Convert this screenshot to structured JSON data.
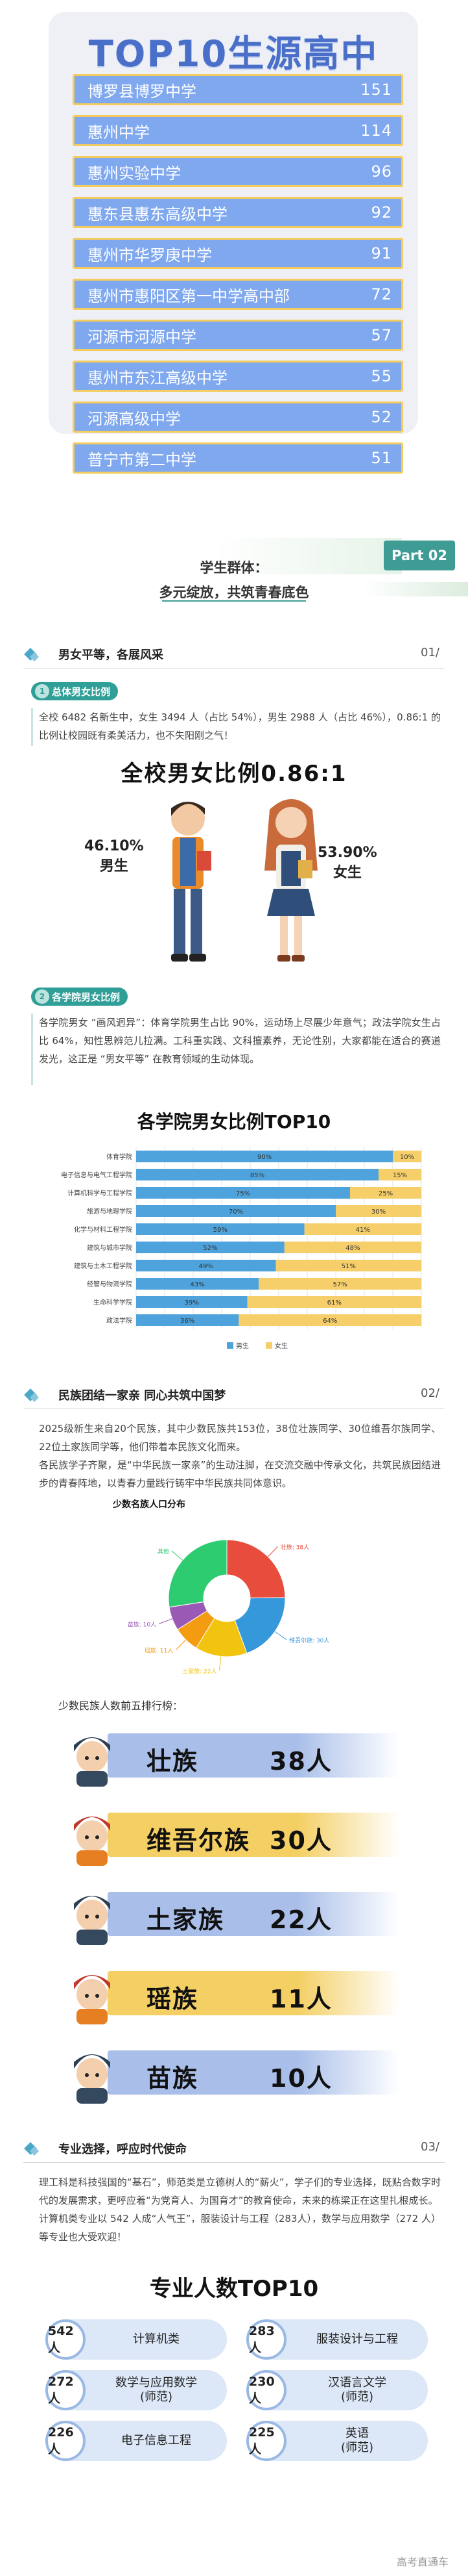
{
  "top10": {
    "title": "TOP10生源高中",
    "schools": [
      {
        "name": "博罗县博罗中学",
        "count": "151"
      },
      {
        "name": "惠州中学",
        "count": "114"
      },
      {
        "name": "惠州实验中学",
        "count": "96"
      },
      {
        "name": "惠东县惠东高级中学",
        "count": "92"
      },
      {
        "name": "惠州市华罗庚中学",
        "count": "91"
      },
      {
        "name": "惠州市惠阳区第一中学高中部",
        "count": "72"
      },
      {
        "name": "河源市河源中学",
        "count": "57"
      },
      {
        "name": "惠州市东江高级中学",
        "count": "55"
      },
      {
        "name": "河源高级中学",
        "count": "52"
      },
      {
        "name": "普宁市第二中学",
        "count": "51"
      }
    ],
    "colors": {
      "bar": "#7fa8ef",
      "border": "#f4cc5c",
      "title": "#4a6fc9"
    }
  },
  "part02": {
    "badge": "Part 02",
    "subtitle1": "学生群体：",
    "subtitle2": "多元绽放，共筑青春底色"
  },
  "sec1": {
    "title": "男女平等，各展风采",
    "num": "01/",
    "tag1": "总体男女比例",
    "para1": "全校 6482 名新生中，女生 3494 人（占比 54%），男生 2988 人（占比 46%），0.86:1 的比例让校园既有柔美活力，也不失阳刚之气！",
    "ratio_title": "全校男女比例0.86:1",
    "male_pct": "46.10%",
    "male_label": "男生",
    "female_pct": "53.90%",
    "female_label": "女生",
    "tag2": "各学院男女比例",
    "para2": "各学院男女 “画风迥异”：体育学院男生占比 90%，运动场上尽展少年意气；政法学院女生占比 64%，知性思辨范儿拉满。工科重实践、文科擅素养，无论性别，大家都能在适合的赛道发光，这正是 “男女平等” 在教育领域的生动体现。"
  },
  "chart_data": [
    {
      "type": "bar",
      "title": "各学院男女比例TOP10",
      "orientation": "horizontal-stacked",
      "categories": [
        "体育学院",
        "电子信息与电气工程学院",
        "计算机科学与工程学院",
        "旅游与地理学院",
        "化学与材料工程学院",
        "建筑与城市学院",
        "建筑与土木工程学院",
        "经管与物流学院",
        "生命科学学院",
        "政法学院"
      ],
      "series": [
        {
          "name": "男生",
          "values": [
            90,
            85,
            75,
            70,
            59,
            52,
            49,
            43,
            39,
            36
          ],
          "color": "#4ea3dc"
        },
        {
          "name": "女生",
          "values": [
            10,
            15,
            25,
            30,
            41,
            48,
            51,
            57,
            61,
            64
          ],
          "color": "#f6cf6b"
        }
      ],
      "value_labels": {
        "男生": [
          "90%",
          "85%",
          "75%",
          "70%",
          "59%",
          "52%",
          "49%",
          "43%",
          "39%",
          "36%"
        ],
        "女生": [
          "10%",
          "15%",
          "25%",
          "30%",
          "41%",
          "48%",
          "51%",
          "57%",
          "61%",
          "64%"
        ]
      },
      "xlim": [
        0,
        100
      ],
      "legend": "bottom",
      "grid": true
    },
    {
      "type": "pie",
      "title": "少数名族人口分布",
      "donut": true,
      "labels": [
        "壮族",
        "维吾尔族",
        "土家族",
        "瑶族",
        "苗族",
        "其他"
      ],
      "values": [
        38,
        30,
        22,
        11,
        10,
        42
      ],
      "slice_labels": [
        "壮族: 38人",
        "维吾尔族: 30人",
        "土家族: 22人",
        "瑶族: 11人",
        "苗族: 10人",
        "其他"
      ],
      "colors": [
        "#e74c3c",
        "#3498db",
        "#f1c40f",
        "#f39c12",
        "#9b59b6",
        "#2ecc71"
      ],
      "legend": "none"
    }
  ],
  "sec2": {
    "title": "民族团结一家亲 同心共筑中国梦",
    "num": "02/",
    "para": "2025级新生来自20个民族，其中少数民族共153位，38位壮族同学、30位维吾尔族同学、22位土家族同学等，他们带着本民族文化而来。\n各民族学子齐聚，是“中华民族一家亲”的生动注脚，在交流交融中传承文化，共筑民族团结进步的青春阵地，以青春力量践行铸牢中华民族共同体意识。",
    "eth_head": "少数民族人数前五排行榜：",
    "ranks": [
      {
        "name": "壮族",
        "count": "38人",
        "bar": "#a9bfe9"
      },
      {
        "name": "维吾尔族",
        "count": "30人",
        "bar": "#f4cf63"
      },
      {
        "name": "土家族",
        "count": "22人",
        "bar": "#a9bfe9"
      },
      {
        "name": "瑶族",
        "count": "11人",
        "bar": "#f4cf63"
      },
      {
        "name": "苗族",
        "count": "10人",
        "bar": "#a9bfe9"
      }
    ]
  },
  "sec3": {
    "title": "专业选择，呼应时代使命",
    "num": "03/",
    "para": "理工科是科技强国的“基石”，师范类是立德树人的“薪火”，学子们的专业选择，既贴合数字时代的发展需求，更呼应着“为党育人、为国育才”的教育使命，未来的栋梁正在这里扎根成长。\n计算机类专业以 542 人成“人气王”，服装设计与工程（283人），数学与应用数学（272 人）等专业也大受欢迎！",
    "major_title": "专业人数TOP10",
    "majors": [
      {
        "count": "542人",
        "name": "计算机类"
      },
      {
        "count": "283人",
        "name": "服装设计与工程"
      },
      {
        "count": "272人",
        "name": "数学与应用数学\n(师范)"
      },
      {
        "count": "230人",
        "name": "汉语言文学\n(师范)"
      },
      {
        "count": "226人",
        "name": "电子信息工程"
      },
      {
        "count": "225人",
        "name": "英语\n(师范)"
      }
    ]
  },
  "watermark": "高考直通车"
}
